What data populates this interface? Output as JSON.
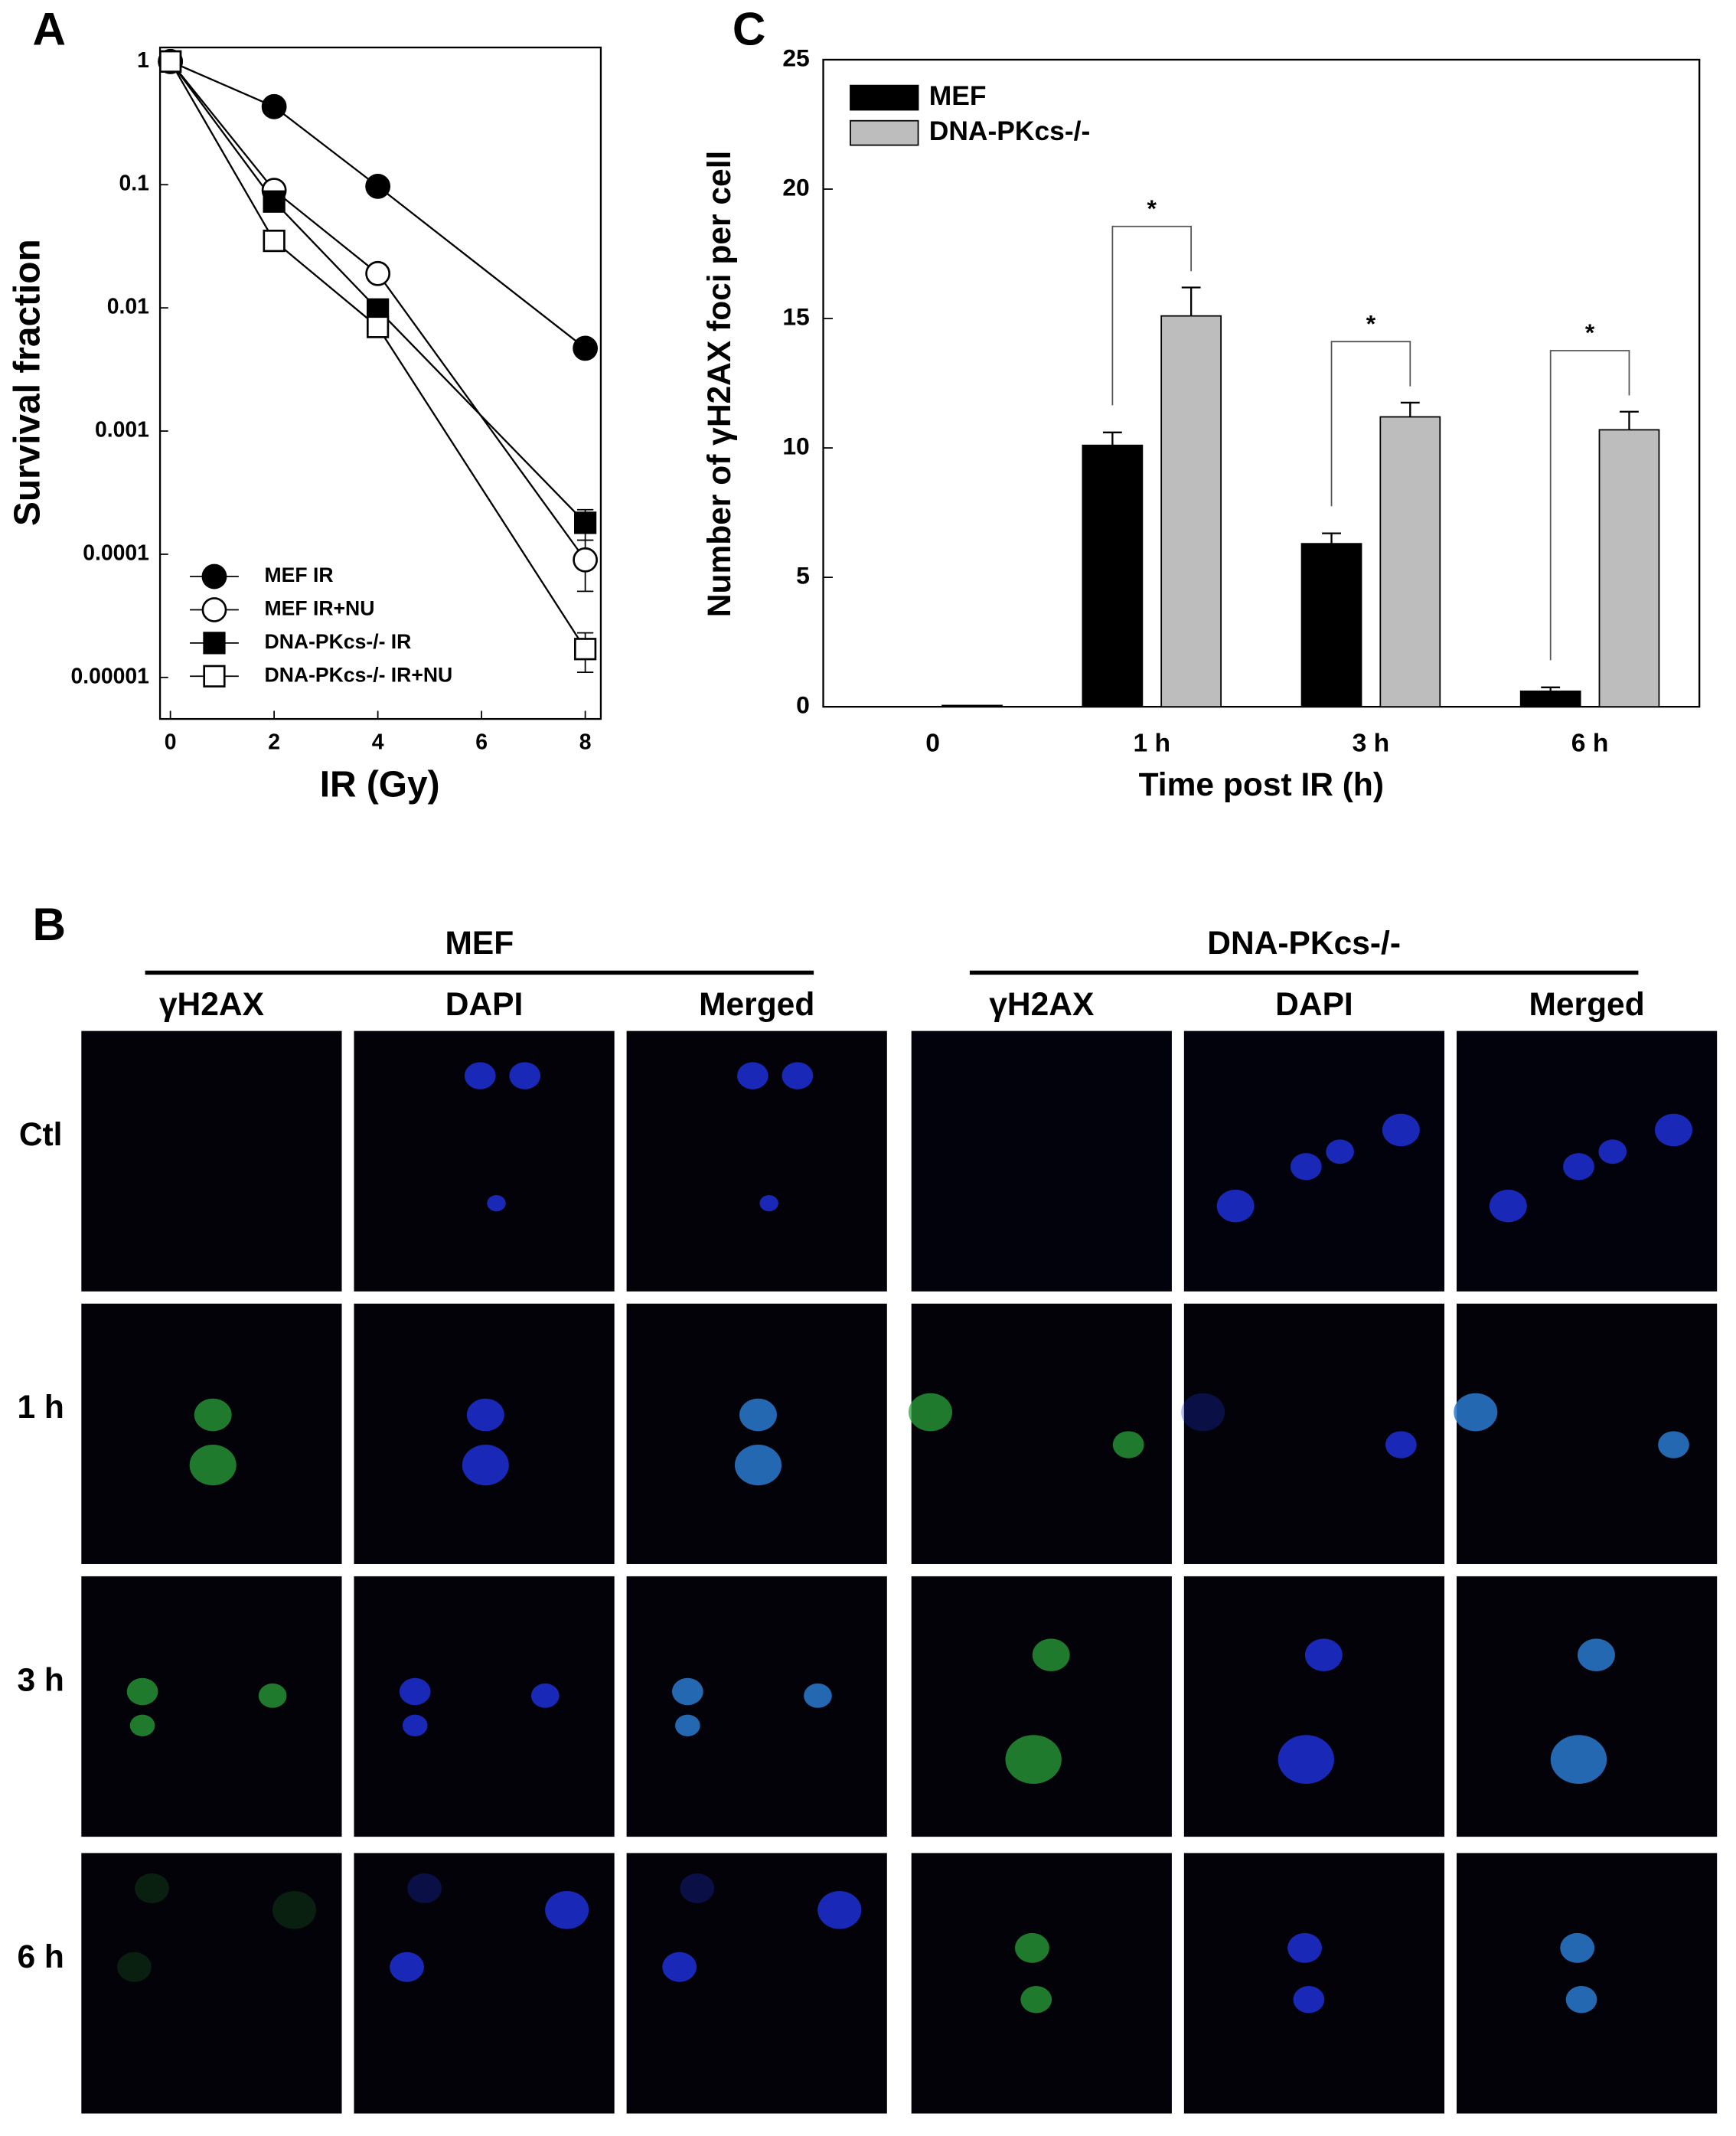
{
  "panel_labels": [
    "A",
    "B",
    "C"
  ],
  "chart_data": [
    {
      "type": "line",
      "xlabel": "IR (Gy)",
      "ylabel": "Survival fraction",
      "log_y": true,
      "xlim": [
        -0.2,
        8.3
      ],
      "xticks": [
        0,
        2,
        4,
        6,
        8
      ],
      "ylim": [
        4.6e-06,
        1.3
      ],
      "yticks": [
        1,
        0.1,
        0.01,
        0.001,
        0.0001,
        1e-05
      ],
      "x": [
        0,
        2,
        4,
        8
      ],
      "legend": "lower left",
      "series": [
        {
          "name": "MEF IR",
          "color": "#000000",
          "marker": "circle",
          "filled": true,
          "values": [
            1,
            0.43,
            0.097,
            0.0047
          ],
          "errors": [
            null,
            null,
            null,
            null
          ]
        },
        {
          "name": "MEF IR+NU",
          "color": "#000000",
          "marker": "circle",
          "filled": false,
          "values": [
            1,
            0.09,
            0.019,
            9e-05
          ],
          "errors": [
            null,
            null,
            null,
            4e-05
          ]
        },
        {
          "name": "DNA-PKcs-/- IR",
          "color": "#000000",
          "marker": "square",
          "filled": true,
          "values": [
            1,
            0.073,
            0.0097,
            0.00018
          ],
          "errors": [
            null,
            null,
            null,
            5e-05
          ]
        },
        {
          "name": "DNA-PKcs-/- IR+NU",
          "color": "#000000",
          "marker": "square",
          "filled": false,
          "values": [
            1,
            0.035,
            0.007,
            1.7e-05
          ],
          "errors": [
            null,
            null,
            null,
            6e-06
          ]
        }
      ]
    },
    {
      "type": "bar",
      "xlabel": "Time post IR (h)",
      "ylabel": "Number of γH2AX foci per cell",
      "categories": [
        "0",
        "1 h",
        "3 h",
        "6 h"
      ],
      "ylim": [
        0,
        25
      ],
      "yticks": [
        0,
        5,
        10,
        15,
        20,
        25
      ],
      "legend": "upper left",
      "significance": [
        null,
        "*",
        "*",
        "*"
      ],
      "series": [
        {
          "name": "MEF",
          "color": "#000000",
          "values": [
            0,
            10.1,
            6.3,
            0.6
          ],
          "errors": [
            null,
            0.5,
            0.4,
            0.15
          ]
        },
        {
          "name": "DNA-PKcs-/-",
          "color": "#bdbdbd",
          "values": [
            0.05,
            15.1,
            11.2,
            10.7
          ],
          "errors": [
            null,
            1.1,
            0.55,
            0.7
          ]
        }
      ]
    }
  ],
  "panel_b": {
    "groups": [
      "MEF",
      "DNA-PKcs-/-"
    ],
    "columns": [
      "γH2AX",
      "DAPI",
      "Merged",
      "γH2AX",
      "DAPI",
      "Merged"
    ],
    "rows": [
      "Ctl",
      "1 h",
      "3 h",
      "6 h"
    ]
  }
}
